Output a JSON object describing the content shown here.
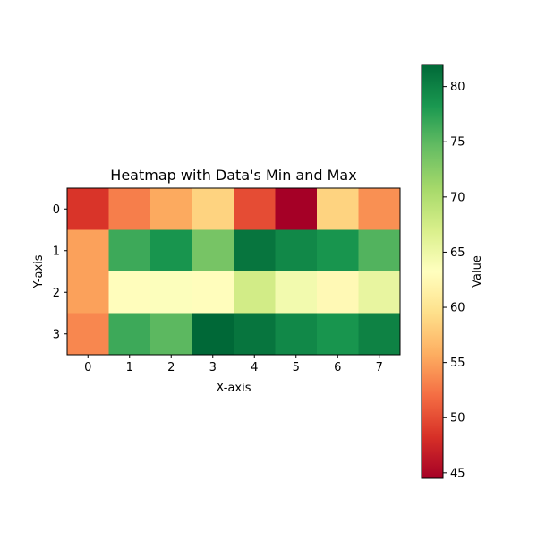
{
  "chart_data": {
    "type": "heatmap",
    "title": "Heatmap with Data's Min and Max",
    "xlabel": "X-axis",
    "ylabel": "Y-axis",
    "x_ticks": [
      "0",
      "1",
      "2",
      "3",
      "4",
      "5",
      "6",
      "7"
    ],
    "y_ticks": [
      "0",
      "1",
      "2",
      "3"
    ],
    "values": [
      [
        48.5,
        53.0,
        55.5,
        58.5,
        50.0,
        44.5,
        58.5,
        54.0
      ],
      [
        55.0,
        76.5,
        78.5,
        73.5,
        81.0,
        79.5,
        78.5,
        75.5
      ],
      [
        55.0,
        63.0,
        63.5,
        63.0,
        67.5,
        64.5,
        62.5,
        65.5
      ],
      [
        53.5,
        76.5,
        75.0,
        82.0,
        81.0,
        79.5,
        78.5,
        80.0
      ]
    ],
    "colormap": "RdYlGn",
    "colorbar": {
      "label": "Value",
      "min": 44.5,
      "max": 82.0,
      "ticks": [
        45,
        50,
        55,
        60,
        65,
        70,
        75,
        80
      ]
    }
  }
}
